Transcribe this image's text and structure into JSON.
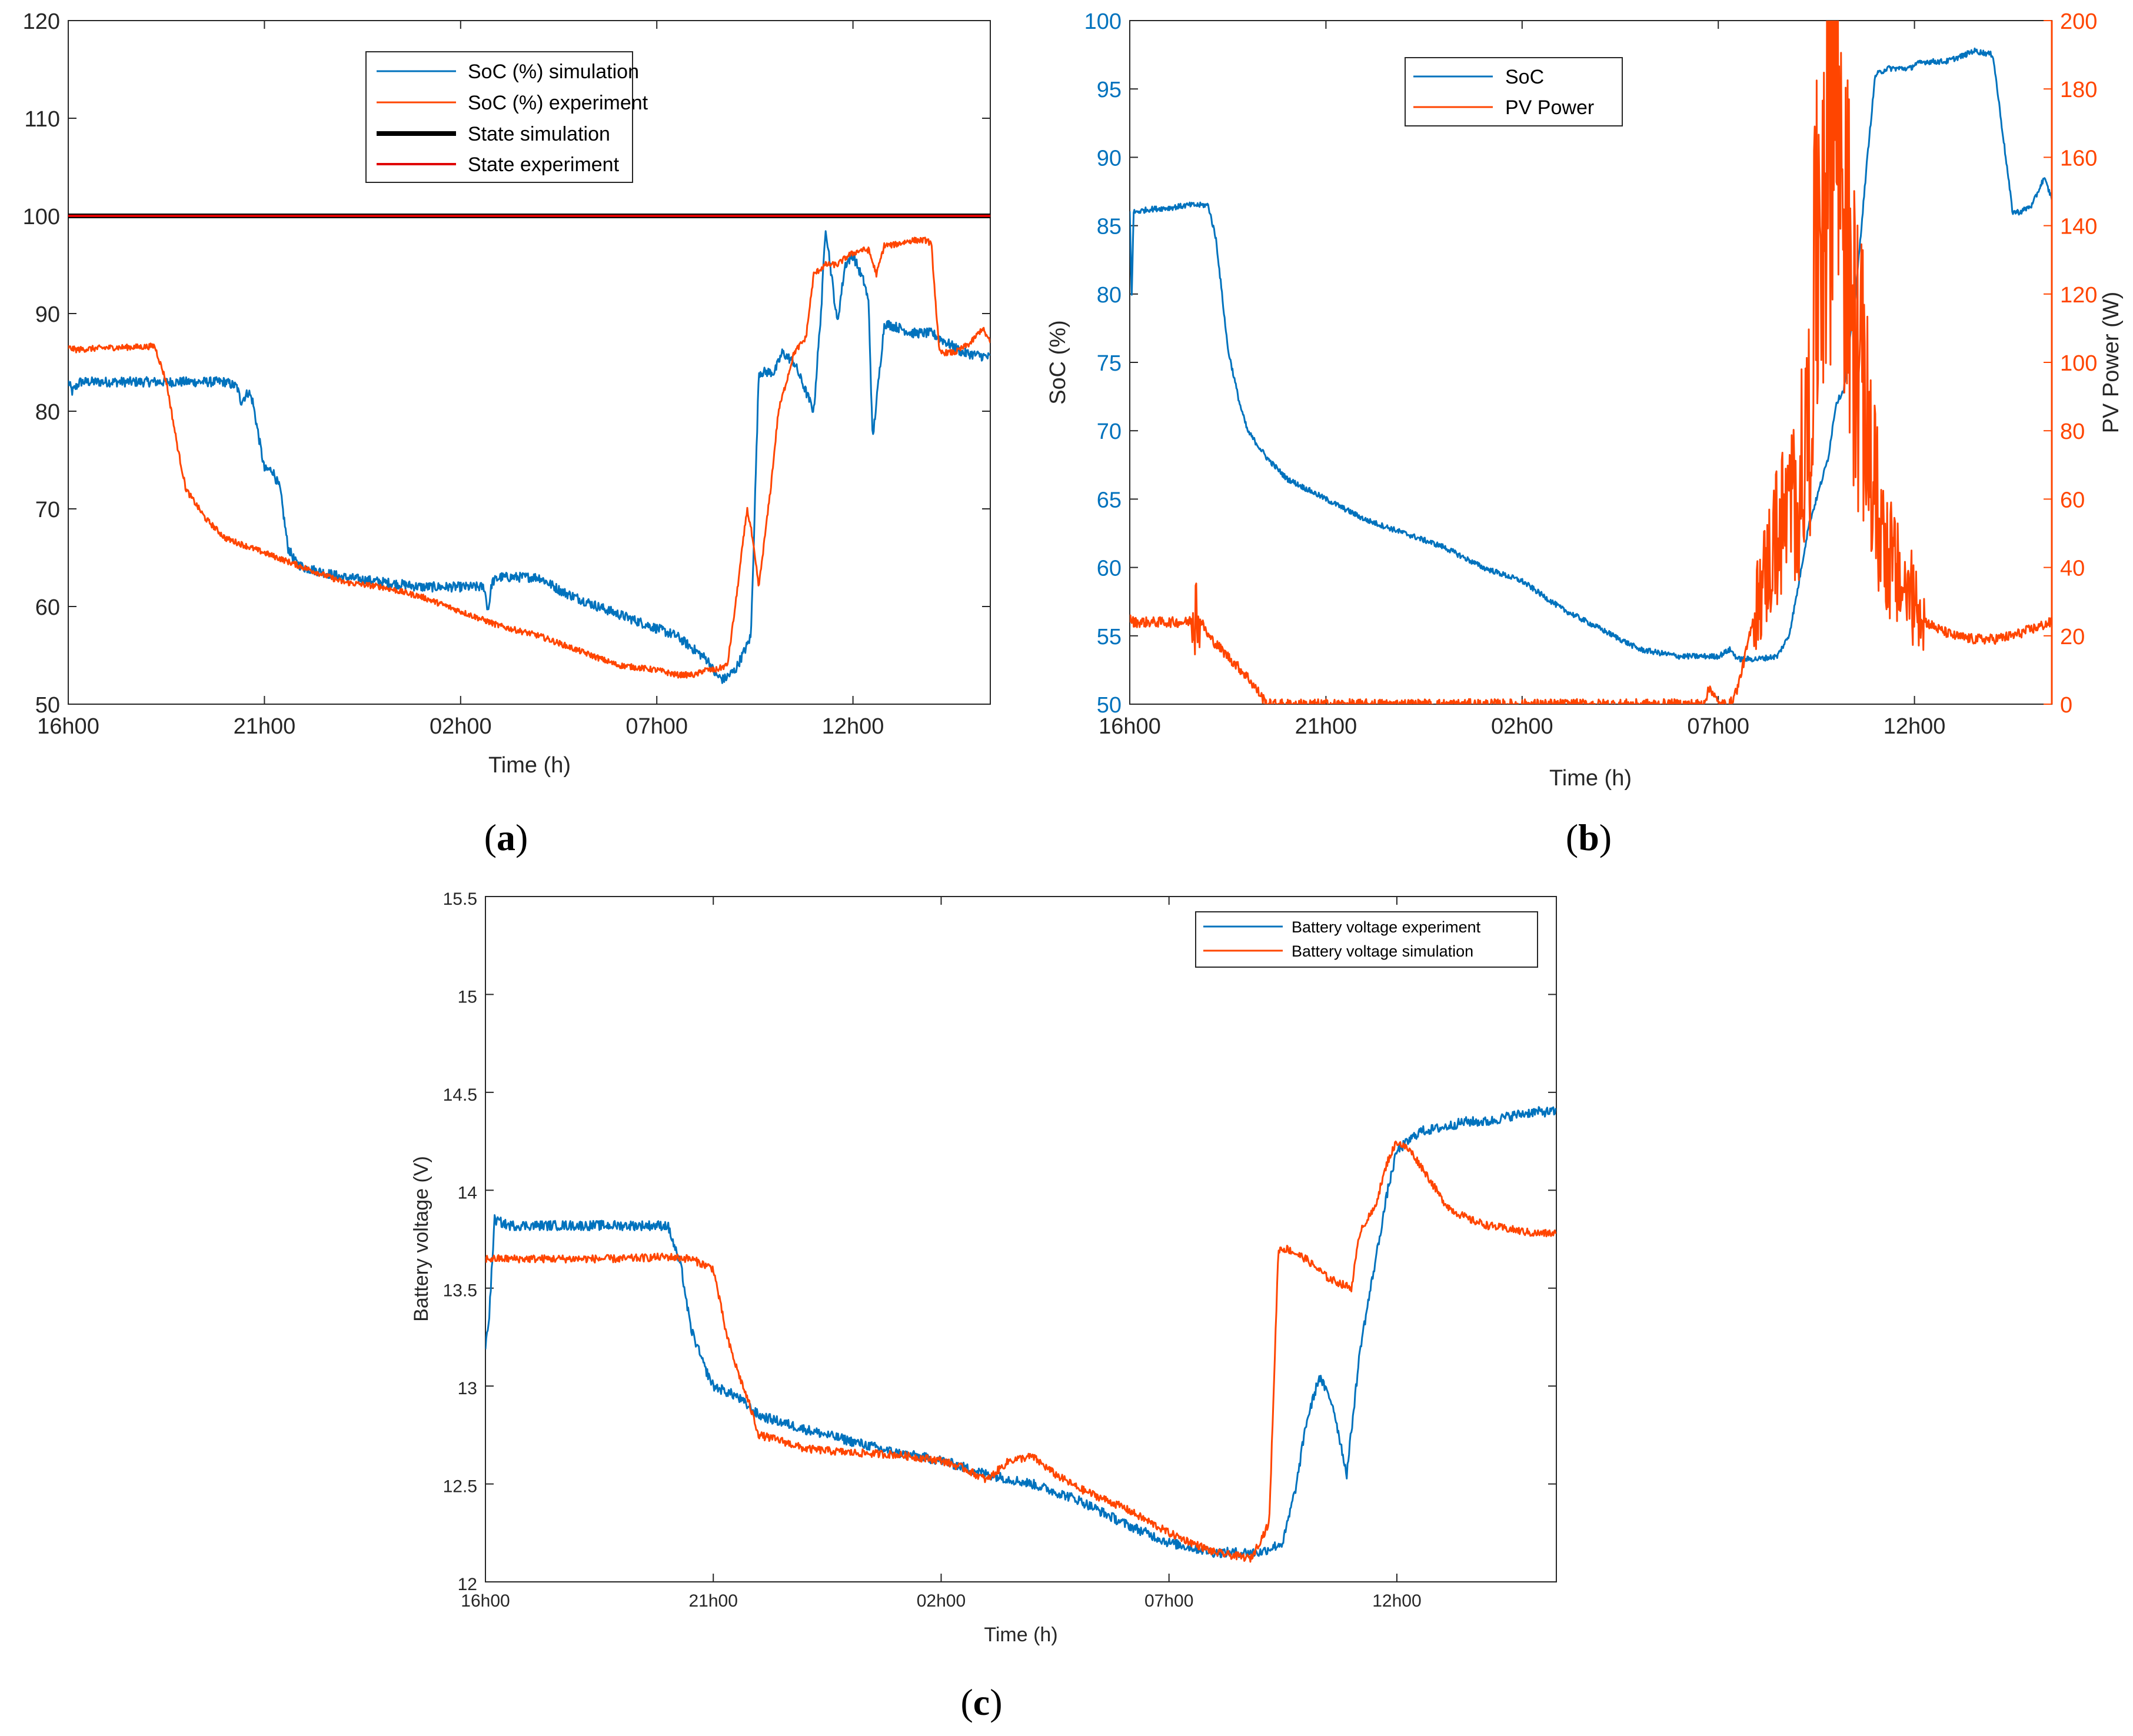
{
  "colors": {
    "blue": "#0072BD",
    "orange": "#FF4500",
    "black": "#000000",
    "red": "#E00000",
    "axis": "#262626"
  },
  "chart_data": [
    {
      "id": "a",
      "type": "line",
      "panel_label": {
        "open": "(",
        "letter": "a",
        "close": ")"
      },
      "xlabel": "Time (h)",
      "ylabel": "",
      "x_unit": "hours since 16h00",
      "xlim": [
        0,
        23.5
      ],
      "ylim": [
        50,
        120
      ],
      "x_ticks": [
        {
          "x": 0,
          "label": "16h00"
        },
        {
          "x": 5,
          "label": "21h00"
        },
        {
          "x": 10,
          "label": "02h00"
        },
        {
          "x": 15,
          "label": "07h00"
        },
        {
          "x": 20,
          "label": "12h00"
        }
      ],
      "y_ticks": [
        50,
        60,
        70,
        80,
        90,
        100,
        110,
        120
      ],
      "legend_position": "top-center",
      "series": [
        {
          "name": "SoC (%) simulation",
          "color_key": "blue",
          "noise": 0.5,
          "x": [
            0,
            0.1,
            0.3,
            2,
            4,
            4.3,
            4.4,
            4.6,
            4.7,
            5,
            5.2,
            5.4,
            5.6,
            5.8,
            6,
            7,
            9,
            10,
            10.6,
            10.7,
            10.8,
            11,
            12,
            12.6,
            13.5,
            14.5,
            15.5,
            16.3,
            16.5,
            16.7,
            17,
            17.3,
            17.4,
            17.6,
            18,
            18.2,
            18.5,
            18.7,
            18.9,
            19,
            19.2,
            19.3,
            19.6,
            19.8,
            20,
            20.3,
            20.4,
            20.5,
            20.8,
            21.2,
            21.5,
            22,
            22.8,
            23.5
          ],
          "y": [
            83,
            82,
            83,
            83,
            83,
            82.5,
            81,
            82,
            81,
            74,
            74,
            72,
            66,
            64.5,
            64,
            63,
            62,
            62,
            62,
            59.5,
            62.5,
            63,
            63,
            61.5,
            60,
            58.5,
            57,
            54.5,
            53,
            52.5,
            53.5,
            56,
            57,
            84,
            84,
            86,
            85,
            83,
            81,
            80,
            91,
            99,
            89,
            95,
            96,
            93,
            91,
            77,
            89,
            88.5,
            88,
            88,
            86,
            85.5
          ]
        },
        {
          "name": "SoC (%) experiment",
          "color_key": "orange",
          "noise": 0.3,
          "x": [
            0,
            0.2,
            1,
            2,
            2.2,
            2.5,
            2.8,
            3,
            3.5,
            4,
            5,
            6,
            7,
            8,
            9,
            10,
            11,
            12,
            13,
            14,
            15,
            15.5,
            16,
            16.2,
            16.5,
            16.8,
            17,
            17.3,
            17.4,
            17.6,
            17.9,
            18.1,
            18.5,
            18.8,
            19,
            19.3,
            19.6,
            19.9,
            20.2,
            20.4,
            20.6,
            20.8,
            21,
            21.5,
            21.9,
            22,
            22.2,
            22.6,
            23,
            23.3,
            23.5
          ],
          "y": [
            86.5,
            86.3,
            86.5,
            86.6,
            86.7,
            83,
            76,
            72,
            69,
            67,
            65.5,
            64,
            62.5,
            62,
            61,
            59.5,
            58,
            57,
            55.5,
            54,
            53.5,
            53,
            53,
            53.5,
            53.5,
            54,
            60,
            70,
            68,
            62,
            72,
            80,
            86,
            87.5,
            94,
            95,
            95,
            96,
            96.5,
            96.5,
            94,
            97,
            97,
            97.5,
            97.5,
            97,
            86,
            86,
            87,
            88.5,
            87
          ]
        },
        {
          "name": "State simulation",
          "color_key": "black",
          "x": [
            0,
            23.5
          ],
          "y": [
            100,
            100
          ]
        },
        {
          "name": "State experiment",
          "color_key": "red",
          "x": [
            0,
            23.5
          ],
          "y": [
            100,
            100
          ]
        }
      ]
    },
    {
      "id": "b",
      "type": "line",
      "panel_label": {
        "open": "(",
        "letter": "b",
        "close": ")"
      },
      "xlabel": "Time (h)",
      "ylabel": "SoC (%)",
      "y2label": "PV Power (W)",
      "xlim": [
        0,
        23.5
      ],
      "ylim": [
        50,
        100
      ],
      "y2lim": [
        0,
        200
      ],
      "x_ticks": [
        {
          "x": 0,
          "label": "16h00"
        },
        {
          "x": 5,
          "label": "21h00"
        },
        {
          "x": 10,
          "label": "02h00"
        },
        {
          "x": 15,
          "label": "07h00"
        },
        {
          "x": 20,
          "label": "12h00"
        }
      ],
      "y_ticks": [
        50,
        55,
        60,
        65,
        70,
        75,
        80,
        85,
        90,
        95,
        100
      ],
      "y2_ticks": [
        0,
        20,
        40,
        60,
        80,
        100,
        120,
        140,
        160,
        180,
        200
      ],
      "legend_position": "top-left",
      "series": [
        {
          "name": "SoC",
          "axis": "left",
          "color_key": "blue",
          "noise": 0.2,
          "x": [
            0,
            0.05,
            0.1,
            0.15,
            0.5,
            1,
            1.5,
            2,
            2.2,
            2.5,
            2.8,
            3,
            3.5,
            4,
            5,
            6,
            7,
            8,
            9,
            10,
            11,
            12,
            13,
            14,
            15,
            15.3,
            15.5,
            16,
            16.5,
            16.8,
            17,
            17.3,
            17.5,
            17.8,
            18,
            18.2,
            18.5,
            18.8,
            19,
            19.3,
            19.6,
            19.9,
            20,
            20.3,
            20.4,
            20.6,
            20.8,
            21,
            21.3,
            21.5,
            22,
            22.5,
            22.7,
            23,
            23.3,
            23.5
          ],
          "y": [
            86,
            80,
            86,
            86,
            86.2,
            86.3,
            86.5,
            86.5,
            84,
            76,
            72,
            70,
            68,
            66.5,
            65,
            63.5,
            62.5,
            61.5,
            60,
            59,
            57,
            55.5,
            54,
            53.5,
            53.5,
            54,
            53.3,
            53.3,
            53.5,
            55,
            58,
            63,
            65,
            68,
            72,
            73,
            80,
            90,
            96,
            96.5,
            96.5,
            96.5,
            96.8,
            97,
            97,
            97,
            97,
            97.2,
            97.5,
            97.8,
            97.5,
            86,
            86,
            86.5,
            88.5,
            87
          ]
        },
        {
          "name": "PV Power",
          "axis": "right",
          "color_key": "orange",
          "noise": 1.5,
          "spiky": true,
          "x": [
            0,
            0.1,
            1.5,
            1.7,
            2,
            2.5,
            3,
            3.5,
            4,
            5,
            10,
            14,
            14.6,
            14.8,
            15,
            15.3,
            15.5,
            16,
            16.5,
            17,
            17.3,
            17.6,
            17.9,
            18,
            18.2,
            18.4,
            18.6,
            18.8,
            19,
            19.3,
            19.6,
            20,
            20.3,
            20.6,
            21,
            21.5,
            22,
            22.5,
            23,
            23.5
          ],
          "y": [
            25,
            24,
            24,
            27,
            20,
            14,
            8,
            0,
            0,
            0,
            0,
            0,
            0,
            5,
            0,
            0,
            5,
            30,
            50,
            60,
            80,
            150,
            185,
            180,
            150,
            110,
            100,
            80,
            60,
            45,
            36,
            30,
            24,
            22,
            20,
            19,
            19,
            20,
            22,
            24
          ]
        }
      ]
    },
    {
      "id": "c",
      "type": "line",
      "panel_label": {
        "open": "(",
        "letter": "c",
        "close": ")"
      },
      "xlabel": "Time (h)",
      "ylabel": "Battery voltage (V)",
      "xlim": [
        0,
        23.5
      ],
      "ylim": [
        12,
        15.5
      ],
      "x_ticks": [
        {
          "x": 0,
          "label": "16h00"
        },
        {
          "x": 5,
          "label": "21h00"
        },
        {
          "x": 10,
          "label": "02h00"
        },
        {
          "x": 15,
          "label": "07h00"
        },
        {
          "x": 20,
          "label": "12h00"
        }
      ],
      "y_ticks": [
        {
          "v": 12,
          "label": "12"
        },
        {
          "v": 12.5,
          "label": "12.5"
        },
        {
          "v": 13,
          "label": "13"
        },
        {
          "v": 13.5,
          "label": "13.5"
        },
        {
          "v": 14,
          "label": "14"
        },
        {
          "v": 14.5,
          "label": "14.5"
        },
        {
          "v": 15,
          "label": "15"
        },
        {
          "v": 15.5,
          "label": "15.5"
        }
      ],
      "legend_position": "top-right",
      "series": [
        {
          "name": "Battery voltage experiment",
          "color_key": "blue",
          "noise": 0.025,
          "x": [
            0,
            0.08,
            0.2,
            0.5,
            2,
            4,
            4.3,
            4.5,
            4.8,
            5,
            5.5,
            6,
            7,
            8,
            9,
            10,
            11,
            12,
            13,
            14,
            15,
            16,
            17,
            17.5,
            17.8,
            18,
            18.3,
            18.6,
            18.9,
            19.2,
            19.5,
            19.8,
            20,
            20.5,
            21,
            21.5,
            22,
            22.5,
            23,
            23.5
          ],
          "y": [
            13.2,
            13.35,
            13.85,
            13.82,
            13.82,
            13.82,
            13.6,
            13.3,
            13.1,
            13,
            12.95,
            12.85,
            12.78,
            12.72,
            12.66,
            12.62,
            12.55,
            12.5,
            12.42,
            12.3,
            12.2,
            12.15,
            12.15,
            12.2,
            12.5,
            12.8,
            13.05,
            12.9,
            12.55,
            13.2,
            13.6,
            14.0,
            14.2,
            14.3,
            14.32,
            14.35,
            14.35,
            14.38,
            14.4,
            14.4
          ]
        },
        {
          "name": "Battery voltage simulation",
          "color_key": "orange",
          "noise": 0.02,
          "x": [
            0,
            1,
            2,
            3,
            4,
            4.5,
            5,
            5.3,
            5.5,
            5.8,
            6,
            6.5,
            7,
            8,
            9,
            10,
            10.5,
            11,
            11.5,
            12,
            12.5,
            13,
            14,
            15,
            16,
            16.8,
            17.2,
            17.4,
            17.6,
            18,
            18.5,
            19,
            19.2,
            19.5,
            19.8,
            20,
            20.3,
            20.6,
            21,
            21.2,
            21.6,
            22,
            22.5,
            23,
            23.5
          ],
          "y": [
            13.65,
            13.65,
            13.65,
            13.65,
            13.66,
            13.65,
            13.6,
            13.25,
            13.1,
            12.9,
            12.75,
            12.72,
            12.68,
            12.66,
            12.65,
            12.62,
            12.58,
            12.52,
            12.62,
            12.64,
            12.55,
            12.48,
            12.38,
            12.25,
            12.15,
            12.12,
            12.3,
            13.7,
            13.7,
            13.65,
            13.55,
            13.5,
            13.8,
            13.9,
            14.15,
            14.25,
            14.2,
            14.1,
            13.95,
            13.9,
            13.85,
            13.82,
            13.8,
            13.78,
            13.78
          ]
        }
      ]
    }
  ]
}
